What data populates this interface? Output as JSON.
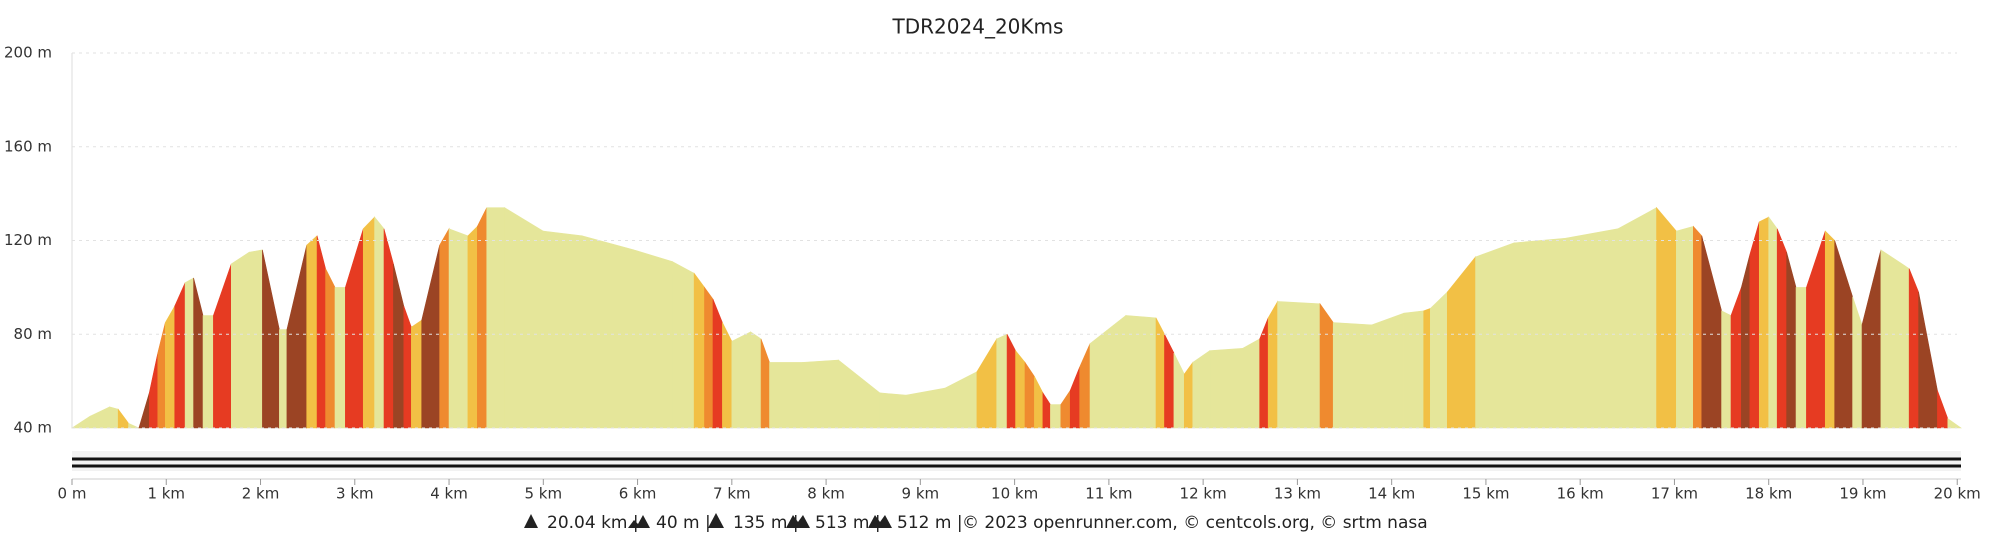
{
  "chart_data": {
    "type": "elevation-area",
    "title": "TDR2024_20Kms",
    "x": [
      0,
      0.19,
      0.4,
      0.49,
      0.6,
      0.71,
      0.82,
      0.91,
      0.99,
      1.09,
      1.2,
      1.29,
      1.39,
      1.5,
      1.69,
      1.88,
      2.02,
      2.2,
      2.28,
      2.49,
      2.6,
      2.69,
      2.79,
      2.9,
      3.09,
      3.21,
      3.31,
      3.41,
      3.52,
      3.6,
      3.71,
      3.9,
      4.0,
      4.2,
      4.3,
      4.4,
      4.59,
      5.0,
      5.41,
      5.96,
      6.37,
      6.6,
      6.71,
      6.8,
      6.9,
      7.0,
      7.2,
      7.31,
      7.4,
      7.75,
      8.13,
      8.57,
      8.85,
      9.26,
      9.6,
      9.81,
      9.92,
      10.01,
      10.11,
      10.21,
      10.3,
      10.38,
      10.49,
      10.59,
      10.69,
      10.8,
      11.18,
      11.5,
      11.59,
      11.69,
      11.8,
      11.89,
      12.07,
      12.42,
      12.6,
      12.69,
      12.79,
      13.24,
      13.38,
      13.79,
      14.13,
      14.34,
      14.41,
      14.59,
      14.89,
      15.3,
      15.85,
      16.4,
      16.81,
      17.02,
      17.2,
      17.29,
      17.5,
      17.6,
      17.71,
      17.8,
      17.9,
      18.0,
      18.09,
      18.19,
      18.29,
      18.4,
      18.6,
      18.7,
      18.89,
      18.99,
      19.19,
      19.49,
      19.59,
      19.79,
      19.9,
      20.04
    ],
    "values": [
      40,
      45,
      49,
      48,
      42,
      40,
      55,
      72,
      85,
      92,
      102,
      104,
      88,
      88,
      110,
      115,
      116,
      82,
      82,
      118,
      122,
      108,
      100,
      100,
      125,
      130,
      125,
      110,
      92,
      83,
      86,
      118,
      125,
      122,
      126,
      134,
      134,
      124,
      122,
      116,
      111,
      106,
      100,
      95,
      85,
      77,
      81,
      78,
      68,
      68,
      69,
      55,
      54,
      57,
      64,
      78,
      80,
      73,
      68,
      62,
      55,
      50,
      50,
      56,
      66,
      76,
      88,
      87,
      80,
      72,
      63,
      68,
      73,
      74,
      78,
      87,
      94,
      93,
      85,
      84,
      89,
      90,
      91,
      98,
      113,
      119,
      121,
      125,
      134,
      124,
      126,
      122,
      90,
      88,
      100,
      114,
      128,
      130,
      125,
      115,
      100,
      100,
      124,
      120,
      96,
      84,
      116,
      108,
      98,
      56,
      44,
      40
    ],
    "segment_colors": [
      "#e5e69a",
      "#e5e69a",
      "#e5e69a",
      "#f2c045",
      "#e5e69a",
      "#9b4424",
      "#e63b22",
      "#ef8a2f",
      "#f2c045",
      "#e63b22",
      "#e5e69a",
      "#9b4424",
      "#e5e69a",
      "#e63b22",
      "#e5e69a",
      "#e5e69a",
      "#9b4424",
      "#e5e69a",
      "#9b4424",
      "#f2c045",
      "#e63b22",
      "#ef8a2f",
      "#e5e69a",
      "#e63b22",
      "#f2c045",
      "#e5e69a",
      "#e63b22",
      "#9b4424",
      "#e63b22",
      "#f2c045",
      "#9b4424",
      "#ef8a2f",
      "#e5e69a",
      "#f2c045",
      "#ef8a2f",
      "#e5e69a",
      "#e5e69a",
      "#e5e69a",
      "#e5e69a",
      "#e5e69a",
      "#e5e69a",
      "#f2c045",
      "#ef8a2f",
      "#e63b22",
      "#f2c045",
      "#e5e69a",
      "#e5e69a",
      "#ef8a2f",
      "#e5e69a",
      "#e5e69a",
      "#e5e69a",
      "#e5e69a",
      "#e5e69a",
      "#e5e69a",
      "#f2c045",
      "#e5e69a",
      "#e63b22",
      "#f2c045",
      "#ef8a2f",
      "#f2c045",
      "#e63b22",
      "#e5e69a",
      "#ef8a2f",
      "#e63b22",
      "#ef8a2f",
      "#e5e69a",
      "#e5e69a",
      "#f2c045",
      "#e63b22",
      "#e5e69a",
      "#f2c045",
      "#e5e69a",
      "#e5e69a",
      "#e5e69a",
      "#e63b22",
      "#f2c045",
      "#e5e69a",
      "#ef8a2f",
      "#e5e69a",
      "#e5e69a",
      "#e5e69a",
      "#f2c045",
      "#e5e69a",
      "#f2c045",
      "#e5e69a",
      "#e5e69a",
      "#e5e69a",
      "#e5e69a",
      "#f2c045",
      "#e5e69a",
      "#ef8a2f",
      "#9b4424",
      "#e5e69a",
      "#e63b22",
      "#9b4424",
      "#e63b22",
      "#f2c045",
      "#e5e69a",
      "#e63b22",
      "#9b4424",
      "#e5e69a",
      "#e63b22",
      "#f2c045",
      "#9b4424",
      "#e5e69a",
      "#9b4424",
      "#e5e69a",
      "#e63b22",
      "#9b4424",
      "#e63b22",
      "#e5e69a"
    ],
    "xlim": [
      0,
      20.04
    ],
    "xticks": [
      {
        "value": 0,
        "label": "0 m"
      },
      {
        "value": 1,
        "label": "1 km"
      },
      {
        "value": 2,
        "label": "2 km"
      },
      {
        "value": 3,
        "label": "3 km"
      },
      {
        "value": 4,
        "label": "4 km"
      },
      {
        "value": 5,
        "label": "5 km"
      },
      {
        "value": 6,
        "label": "6 km"
      },
      {
        "value": 7,
        "label": "7 km"
      },
      {
        "value": 8,
        "label": "8 km"
      },
      {
        "value": 9,
        "label": "9 km"
      },
      {
        "value": 10,
        "label": "10 km"
      },
      {
        "value": 11,
        "label": "11 km"
      },
      {
        "value": 12,
        "label": "12 km"
      },
      {
        "value": 13,
        "label": "13 km"
      },
      {
        "value": 14,
        "label": "14 km"
      },
      {
        "value": 15,
        "label": "15 km"
      },
      {
        "value": 16,
        "label": "16 km"
      },
      {
        "value": 17,
        "label": "17 km"
      },
      {
        "value": 18,
        "label": "18 km"
      },
      {
        "value": 19,
        "label": "19 km"
      },
      {
        "value": 20,
        "label": "20 km"
      }
    ],
    "ylim": [
      40,
      200
    ],
    "yticks": [
      {
        "value": 40,
        "label": "40 m"
      },
      {
        "value": 80,
        "label": "80 m"
      },
      {
        "value": 120,
        "label": "120 m"
      },
      {
        "value": 160,
        "label": "160 m"
      },
      {
        "value": 200,
        "label": "200 m"
      }
    ],
    "grid": true,
    "footer": {
      "distance": "20.04 km |",
      "min": "40 m |",
      "max": "135 m |",
      "gain": "513 m |",
      "loss": "512 m |",
      "credits": "© 2023 openrunner.com, © centcols.org, © srtm nasa"
    }
  }
}
